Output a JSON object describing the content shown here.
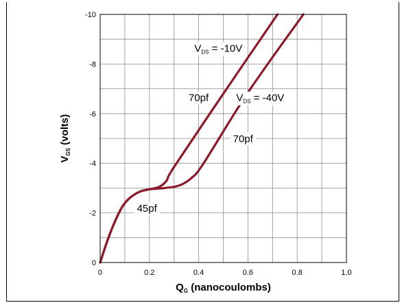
{
  "chart_data": {
    "type": "line",
    "xlabel": {
      "main": "Q",
      "sub": "G",
      "rest": " (nanocoulombs)"
    },
    "ylabel": {
      "main": "V",
      "sub": "GS",
      "rest": " (volts)"
    },
    "xlim": [
      0,
      1.0
    ],
    "ylim": [
      0,
      -10
    ],
    "x_ticks": [
      0,
      0.2,
      0.4,
      0.6,
      0.8,
      1.0
    ],
    "x_tick_labels": [
      "0",
      "0.2",
      "0.4",
      "0.6",
      "0.8",
      "1.0"
    ],
    "y_ticks": [
      0,
      -2,
      -4,
      -6,
      -8,
      -10
    ],
    "y_tick_labels": [
      "0",
      "-2",
      "-4",
      "-6",
      "-8",
      "-10"
    ],
    "grid": true,
    "line_color": "#8b1a2b",
    "series": [
      {
        "name": "VDS = -10V",
        "points": [
          [
            0,
            0
          ],
          [
            0.03,
            -0.9
          ],
          [
            0.06,
            -1.65
          ],
          [
            0.09,
            -2.25
          ],
          [
            0.12,
            -2.6
          ],
          [
            0.16,
            -2.85
          ],
          [
            0.2,
            -2.95
          ],
          [
            0.24,
            -3.05
          ],
          [
            0.27,
            -3.3
          ],
          [
            0.3,
            -3.85
          ],
          [
            0.5,
            -6.8
          ],
          [
            0.72,
            -10.0
          ]
        ]
      },
      {
        "name": "VDS = -40V",
        "points": [
          [
            0,
            0
          ],
          [
            0.03,
            -0.9
          ],
          [
            0.06,
            -1.65
          ],
          [
            0.09,
            -2.25
          ],
          [
            0.12,
            -2.6
          ],
          [
            0.16,
            -2.85
          ],
          [
            0.2,
            -2.95
          ],
          [
            0.26,
            -3.0
          ],
          [
            0.32,
            -3.1
          ],
          [
            0.37,
            -3.4
          ],
          [
            0.42,
            -4.0
          ],
          [
            0.6,
            -6.85
          ],
          [
            0.825,
            -10.0
          ]
        ]
      }
    ],
    "annotations": [
      {
        "main": "V",
        "sub": "DS",
        "rest": " = -10V",
        "x": 0.48,
        "y": -8.5
      },
      {
        "main": "V",
        "sub": "DS",
        "rest": " = -40V",
        "x": 0.65,
        "y": -6.5
      },
      {
        "text": "70pf",
        "x": 0.4,
        "y": -6.5
      },
      {
        "text": "70pf",
        "x": 0.58,
        "y": -4.85
      },
      {
        "text": "45pf",
        "x": 0.19,
        "y": -2.05
      }
    ]
  }
}
